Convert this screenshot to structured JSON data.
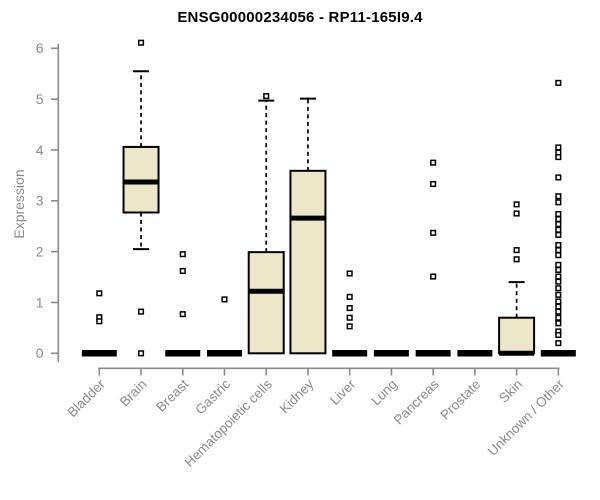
{
  "chart_data": {
    "type": "boxplot",
    "title": "ENSG00000234056 - RP11-165I9.4",
    "ylabel": "Expression",
    "xlabel": "",
    "ylim": [
      0,
      6
    ],
    "yticks": [
      0,
      1,
      2,
      3,
      4,
      5,
      6
    ],
    "grid": false,
    "legend": false,
    "categories": [
      "Bladder",
      "Brain",
      "Breast",
      "Gastric",
      "Hematopoietic cells",
      "Kidney",
      "Liver",
      "Lung",
      "Pancreas",
      "Prostate",
      "Skin",
      "Unknown / Other"
    ],
    "series": [
      {
        "category": "Bladder",
        "q1": 0,
        "median": 0,
        "q3": 0,
        "whisker_low": 0,
        "whisker_high": 0,
        "outliers": [
          1.18,
          0.71,
          0.63
        ]
      },
      {
        "category": "Brain",
        "q1": 2.77,
        "median": 3.37,
        "q3": 4.06,
        "whisker_low": 2.05,
        "whisker_high": 5.55,
        "outliers": [
          6.11,
          0.82,
          0
        ]
      },
      {
        "category": "Breast",
        "q1": 0,
        "median": 0,
        "q3": 0,
        "whisker_low": 0,
        "whisker_high": 0,
        "outliers": [
          1.95,
          1.62,
          0.77
        ]
      },
      {
        "category": "Gastric",
        "q1": 0,
        "median": 0,
        "q3": 0,
        "whisker_low": 0,
        "whisker_high": 0,
        "outliers": [
          1.06
        ]
      },
      {
        "category": "Hematopoietic cells",
        "q1": 0,
        "median": 1.22,
        "q3": 1.99,
        "whisker_low": 0,
        "whisker_high": 4.97,
        "outliers": [
          5.06
        ]
      },
      {
        "category": "Kidney",
        "q1": 0,
        "median": 2.66,
        "q3": 3.59,
        "whisker_low": 0,
        "whisker_high": 5.01,
        "outliers": []
      },
      {
        "category": "Liver",
        "q1": 0,
        "median": 0,
        "q3": 0,
        "whisker_low": 0,
        "whisker_high": 0,
        "outliers": [
          1.57,
          1.11,
          0.89,
          0.7,
          0.53
        ]
      },
      {
        "category": "Lung",
        "q1": 0,
        "median": 0,
        "q3": 0,
        "whisker_low": 0,
        "whisker_high": 0,
        "outliers": []
      },
      {
        "category": "Pancreas",
        "q1": 0,
        "median": 0,
        "q3": 0,
        "whisker_low": 0,
        "whisker_high": 0,
        "outliers": [
          3.75,
          3.33,
          2.37,
          1.51
        ]
      },
      {
        "category": "Prostate",
        "q1": 0,
        "median": 0,
        "q3": 0,
        "whisker_low": 0,
        "whisker_high": 0,
        "outliers": []
      },
      {
        "category": "Skin",
        "q1": 0,
        "median": 0,
        "q3": 0.7,
        "whisker_low": 0,
        "whisker_high": 1.4,
        "outliers": [
          2.93,
          2.75,
          2.03,
          1.85
        ]
      },
      {
        "category": "Unknown / Other",
        "q1": 0,
        "median": 0,
        "q3": 0,
        "whisker_low": 0,
        "whisker_high": 0,
        "outliers": [
          5.32,
          4.05,
          3.95,
          3.86,
          3.46,
          3.09,
          2.97,
          2.74,
          2.64,
          2.54,
          2.43,
          2.33,
          2.13,
          2.03,
          1.93,
          1.74,
          1.64,
          1.51,
          1.41,
          1.28,
          1.15,
          1.02,
          0.92,
          0.82,
          0.7,
          0.59,
          0.43,
          0.36,
          0.2
        ]
      }
    ],
    "colors": {
      "box_fill": "#EDE6CB",
      "box_border": "#000000",
      "median": "#000000",
      "whisker": "#000000",
      "outlier_stroke": "#000000",
      "outlier_fill": "#ffffff",
      "axis": "#8b8b8b",
      "text": "#8b8b8b",
      "title": "#000000",
      "background": "#ffffff"
    }
  }
}
